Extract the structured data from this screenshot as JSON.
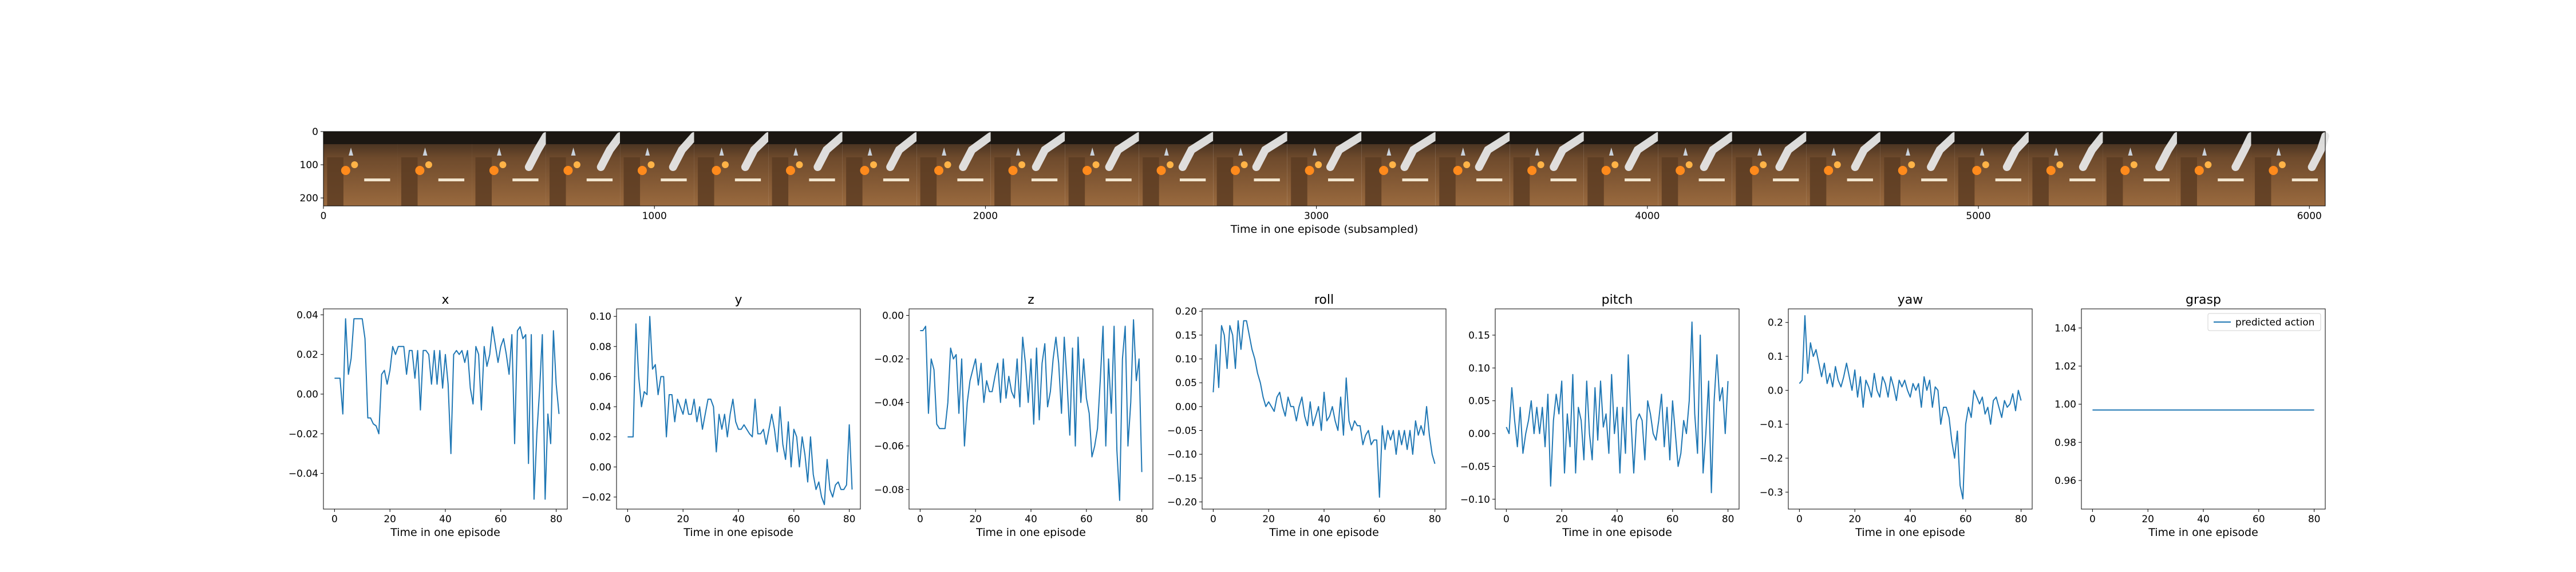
{
  "colors": {
    "series": "#1f77b4",
    "frame": "#000000",
    "background": "#ffffff"
  },
  "filmstrip": {
    "xlabel": "Time in one episode (subsampled)",
    "xticks": [
      0,
      1000,
      2000,
      3000,
      4000,
      5000,
      6000
    ],
    "yticks": [
      0,
      100,
      200
    ],
    "xlim": [
      0,
      6048
    ],
    "ylim": [
      224,
      0
    ],
    "frame_count": 27
  },
  "chart_data": [
    {
      "type": "line",
      "title": "x",
      "xlabel": "Time in one episode",
      "xlim": [
        -4,
        84
      ],
      "ylim": [
        -0.058,
        0.043
      ],
      "xticks": [
        0,
        20,
        40,
        60,
        80
      ],
      "yticks": [
        -0.04,
        -0.02,
        0.0,
        0.02,
        0.04
      ],
      "ytick_labels": [
        "−0.04",
        "−0.02",
        "0.00",
        "0.02",
        "0.04"
      ],
      "series": [
        {
          "values": [
            0.008,
            0.008,
            0.008,
            -0.01,
            0.038,
            0.01,
            0.018,
            0.038,
            0.038,
            0.038,
            0.038,
            0.028,
            -0.012,
            -0.012,
            -0.015,
            -0.016,
            -0.02,
            0.01,
            0.012,
            0.005,
            0.012,
            0.024,
            0.02,
            0.024,
            0.024,
            0.024,
            0.01,
            0.022,
            0.022,
            0.008,
            0.022,
            -0.008,
            0.022,
            0.022,
            0.02,
            0.005,
            0.022,
            0.005,
            0.022,
            0.003,
            0.02,
            0.005,
            -0.03,
            0.02,
            0.022,
            0.02,
            0.022,
            0.016,
            0.022,
            0.003,
            -0.005,
            0.024,
            0.02,
            -0.008,
            0.024,
            0.014,
            0.02,
            0.034,
            0.025,
            0.016,
            0.024,
            0.028,
            0.02,
            0.01,
            0.03,
            -0.025,
            0.032,
            0.034,
            0.028,
            0.03,
            -0.035,
            0.03,
            -0.053,
            -0.02,
            0.002,
            0.03,
            -0.053,
            -0.01,
            -0.025,
            0.032,
            0.005,
            -0.01
          ]
        }
      ]
    },
    {
      "type": "line",
      "title": "y",
      "xlabel": "Time in one episode",
      "xlim": [
        -4,
        84
      ],
      "ylim": [
        -0.028,
        0.105
      ],
      "xticks": [
        0,
        20,
        40,
        60,
        80
      ],
      "yticks": [
        -0.02,
        0.0,
        0.02,
        0.04,
        0.06,
        0.08,
        0.1
      ],
      "ytick_labels": [
        "−0.02",
        "0.00",
        "0.02",
        "0.04",
        "0.06",
        "0.08",
        "0.10"
      ],
      "series": [
        {
          "values": [
            0.02,
            0.02,
            0.02,
            0.095,
            0.06,
            0.04,
            0.05,
            0.048,
            0.1,
            0.065,
            0.068,
            0.048,
            0.06,
            0.06,
            0.02,
            0.048,
            0.048,
            0.03,
            0.045,
            0.04,
            0.035,
            0.045,
            0.035,
            0.035,
            0.045,
            0.03,
            0.04,
            0.025,
            0.035,
            0.045,
            0.045,
            0.04,
            0.01,
            0.035,
            0.025,
            0.035,
            0.02,
            0.035,
            0.045,
            0.03,
            0.025,
            0.025,
            0.028,
            0.025,
            0.022,
            0.02,
            0.045,
            0.022,
            0.022,
            0.025,
            0.015,
            0.025,
            0.035,
            0.025,
            0.01,
            0.04,
            0.015,
            0.005,
            0.03,
            0.0,
            0.025,
            0.02,
            0.0,
            0.02,
            0.008,
            -0.01,
            0.02,
            -0.005,
            -0.015,
            -0.01,
            -0.02,
            -0.025,
            0.005,
            -0.015,
            -0.02,
            -0.012,
            -0.01,
            -0.015,
            -0.015,
            -0.012,
            0.028,
            -0.015
          ]
        }
      ]
    },
    {
      "type": "line",
      "title": "z",
      "xlabel": "Time in one episode",
      "xlim": [
        -4,
        84
      ],
      "ylim": [
        -0.089,
        0.003
      ],
      "xticks": [
        0,
        20,
        40,
        60,
        80
      ],
      "yticks": [
        -0.08,
        -0.06,
        -0.04,
        -0.02,
        0.0
      ],
      "ytick_labels": [
        "−0.08",
        "−0.06",
        "−0.04",
        "−0.02",
        "0.00"
      ],
      "series": [
        {
          "values": [
            -0.007,
            -0.007,
            -0.005,
            -0.045,
            -0.02,
            -0.025,
            -0.05,
            -0.052,
            -0.052,
            -0.052,
            -0.04,
            -0.015,
            -0.02,
            -0.018,
            -0.045,
            -0.02,
            -0.06,
            -0.04,
            -0.03,
            -0.025,
            -0.02,
            -0.032,
            -0.022,
            -0.04,
            -0.03,
            -0.035,
            -0.035,
            -0.028,
            -0.022,
            -0.04,
            -0.02,
            -0.038,
            -0.028,
            -0.035,
            -0.038,
            -0.02,
            -0.042,
            -0.01,
            -0.022,
            -0.04,
            -0.02,
            -0.05,
            -0.015,
            -0.048,
            -0.022,
            -0.013,
            -0.042,
            -0.035,
            -0.02,
            -0.01,
            -0.022,
            -0.045,
            -0.01,
            -0.03,
            -0.055,
            -0.015,
            -0.06,
            -0.01,
            -0.04,
            -0.02,
            -0.038,
            -0.045,
            -0.065,
            -0.06,
            -0.052,
            -0.03,
            -0.005,
            -0.06,
            -0.02,
            -0.045,
            -0.005,
            -0.062,
            -0.085,
            -0.02,
            -0.005,
            -0.06,
            -0.04,
            -0.002,
            -0.03,
            -0.02,
            -0.072
          ]
        }
      ]
    },
    {
      "type": "line",
      "title": "roll",
      "xlabel": "Time in one episode",
      "xlim": [
        -4,
        84
      ],
      "ylim": [
        -0.215,
        0.205
      ],
      "xticks": [
        0,
        20,
        40,
        60,
        80
      ],
      "yticks": [
        -0.2,
        -0.15,
        -0.1,
        -0.05,
        0.0,
        0.05,
        0.1,
        0.15,
        0.2
      ],
      "ytick_labels": [
        "−0.20",
        "−0.15",
        "−0.10",
        "−0.05",
        "0.00",
        "0.05",
        "0.10",
        "0.15",
        "0.20"
      ],
      "series": [
        {
          "values": [
            0.03,
            0.13,
            0.04,
            0.17,
            0.15,
            0.08,
            0.17,
            0.15,
            0.08,
            0.18,
            0.12,
            0.18,
            0.18,
            0.15,
            0.12,
            0.1,
            0.07,
            0.05,
            0.02,
            0.0,
            0.01,
            0.0,
            -0.01,
            0.02,
            0.03,
            0.0,
            -0.02,
            0.02,
            0.0,
            0.0,
            -0.03,
            0.0,
            0.02,
            -0.02,
            -0.04,
            0.01,
            -0.04,
            -0.02,
            0.0,
            -0.05,
            0.03,
            -0.03,
            -0.02,
            0.0,
            -0.03,
            -0.05,
            0.02,
            -0.06,
            0.06,
            -0.03,
            -0.05,
            -0.03,
            -0.04,
            -0.04,
            -0.08,
            -0.06,
            -0.05,
            -0.08,
            -0.07,
            -0.07,
            -0.19,
            -0.04,
            -0.09,
            -0.05,
            -0.07,
            -0.05,
            -0.1,
            -0.05,
            -0.08,
            -0.05,
            -0.09,
            -0.05,
            -0.1,
            -0.03,
            -0.06,
            -0.04,
            -0.06,
            0.0,
            -0.06,
            -0.1,
            -0.12
          ]
        }
      ]
    },
    {
      "type": "line",
      "title": "pitch",
      "xlabel": "Time in one episode",
      "xlim": [
        -4,
        84
      ],
      "ylim": [
        -0.115,
        0.19
      ],
      "xticks": [
        0,
        20,
        40,
        60,
        80
      ],
      "yticks": [
        -0.1,
        -0.05,
        0.0,
        0.05,
        0.1,
        0.15
      ],
      "ytick_labels": [
        "−0.10",
        "−0.05",
        "0.00",
        "0.05",
        "0.10",
        "0.15"
      ],
      "series": [
        {
          "values": [
            0.01,
            0.0,
            0.07,
            0.02,
            -0.02,
            0.04,
            -0.03,
            0.0,
            0.02,
            0.05,
            0.0,
            0.04,
            0.0,
            0.04,
            -0.02,
            0.06,
            -0.08,
            0.02,
            0.06,
            0.03,
            0.08,
            -0.06,
            0.03,
            -0.02,
            0.09,
            -0.06,
            0.04,
            0.02,
            -0.04,
            0.08,
            0.0,
            -0.04,
            0.07,
            -0.01,
            0.08,
            0.01,
            0.03,
            -0.03,
            0.09,
            0.0,
            0.04,
            -0.06,
            0.04,
            -0.03,
            0.12,
            0.02,
            -0.06,
            0.02,
            0.03,
            0.02,
            -0.04,
            0.05,
            0.03,
            0.0,
            -0.01,
            0.02,
            0.06,
            -0.02,
            0.04,
            -0.04,
            0.05,
            0.0,
            -0.05,
            -0.03,
            0.02,
            0.0,
            0.05,
            0.17,
            0.03,
            -0.03,
            0.15,
            -0.06,
            0.0,
            0.08,
            -0.09,
            0.05,
            0.12,
            0.05,
            0.07,
            0.0,
            0.08
          ]
        }
      ]
    },
    {
      "type": "line",
      "title": "yaw",
      "xlabel": "Time in one episode",
      "xlim": [
        -4,
        84
      ],
      "ylim": [
        -0.35,
        0.24
      ],
      "xticks": [
        0,
        20,
        40,
        60,
        80
      ],
      "yticks": [
        -0.3,
        -0.2,
        -0.1,
        0.0,
        0.1,
        0.2
      ],
      "ytick_labels": [
        "−0.3",
        "−0.2",
        "−0.1",
        "0.0",
        "0.1",
        "0.2"
      ],
      "series": [
        {
          "values": [
            0.02,
            0.03,
            0.22,
            0.05,
            0.14,
            0.1,
            0.12,
            0.08,
            0.04,
            0.08,
            0.02,
            0.05,
            0.01,
            0.07,
            0.03,
            0.01,
            0.04,
            0.08,
            0.04,
            0.0,
            0.06,
            -0.02,
            0.04,
            -0.05,
            0.03,
            0.01,
            -0.02,
            0.05,
            0.0,
            -0.02,
            0.04,
            0.02,
            -0.02,
            0.04,
            0.01,
            -0.03,
            0.03,
            0.01,
            0.03,
            0.0,
            -0.02,
            0.02,
            0.0,
            0.02,
            -0.05,
            0.04,
            0.0,
            0.03,
            -0.05,
            0.01,
            0.0,
            -0.1,
            -0.05,
            -0.05,
            -0.08,
            -0.15,
            -0.2,
            -0.12,
            -0.28,
            -0.32,
            -0.1,
            -0.05,
            -0.08,
            0.0,
            -0.02,
            -0.04,
            -0.02,
            -0.07,
            -0.05,
            -0.1,
            -0.03,
            -0.02,
            -0.05,
            -0.08,
            -0.03,
            -0.05,
            -0.04,
            -0.01,
            -0.06,
            0.0,
            -0.03
          ]
        }
      ]
    },
    {
      "type": "line",
      "title": "grasp",
      "xlabel": "Time in one episode",
      "xlim": [
        -4,
        84
      ],
      "ylim": [
        0.945,
        1.05
      ],
      "xticks": [
        0,
        20,
        40,
        60,
        80
      ],
      "yticks": [
        0.96,
        0.98,
        1.0,
        1.02,
        1.04
      ],
      "ytick_labels": [
        "0.96",
        "0.98",
        "1.00",
        "1.02",
        "1.04"
      ],
      "legend": {
        "label": "predicted action",
        "position": "upper right"
      },
      "series": [
        {
          "name": "predicted action",
          "values": [
            0.997,
            0.997,
            0.997,
            0.997,
            0.997,
            0.997,
            0.997,
            0.997,
            0.997,
            0.997,
            0.997,
            0.997,
            0.997,
            0.997,
            0.997,
            0.997,
            0.997,
            0.997,
            0.997,
            0.997,
            0.997,
            0.997,
            0.997,
            0.997,
            0.997,
            0.997,
            0.997,
            0.997,
            0.997,
            0.997,
            0.997,
            0.997,
            0.997,
            0.997,
            0.997,
            0.997,
            0.997,
            0.997,
            0.997,
            0.997,
            0.997,
            0.997,
            0.997,
            0.997,
            0.997,
            0.997,
            0.997,
            0.997,
            0.997,
            0.997,
            0.997,
            0.997,
            0.997,
            0.997,
            0.997,
            0.997,
            0.997,
            0.997,
            0.997,
            0.997,
            0.997,
            0.997,
            0.997,
            0.997,
            0.997,
            0.997,
            0.997,
            0.997,
            0.997,
            0.997,
            0.997,
            0.997,
            0.997,
            0.997,
            0.997,
            0.997,
            0.997,
            0.997,
            0.997,
            0.997,
            0.997
          ]
        }
      ]
    }
  ]
}
